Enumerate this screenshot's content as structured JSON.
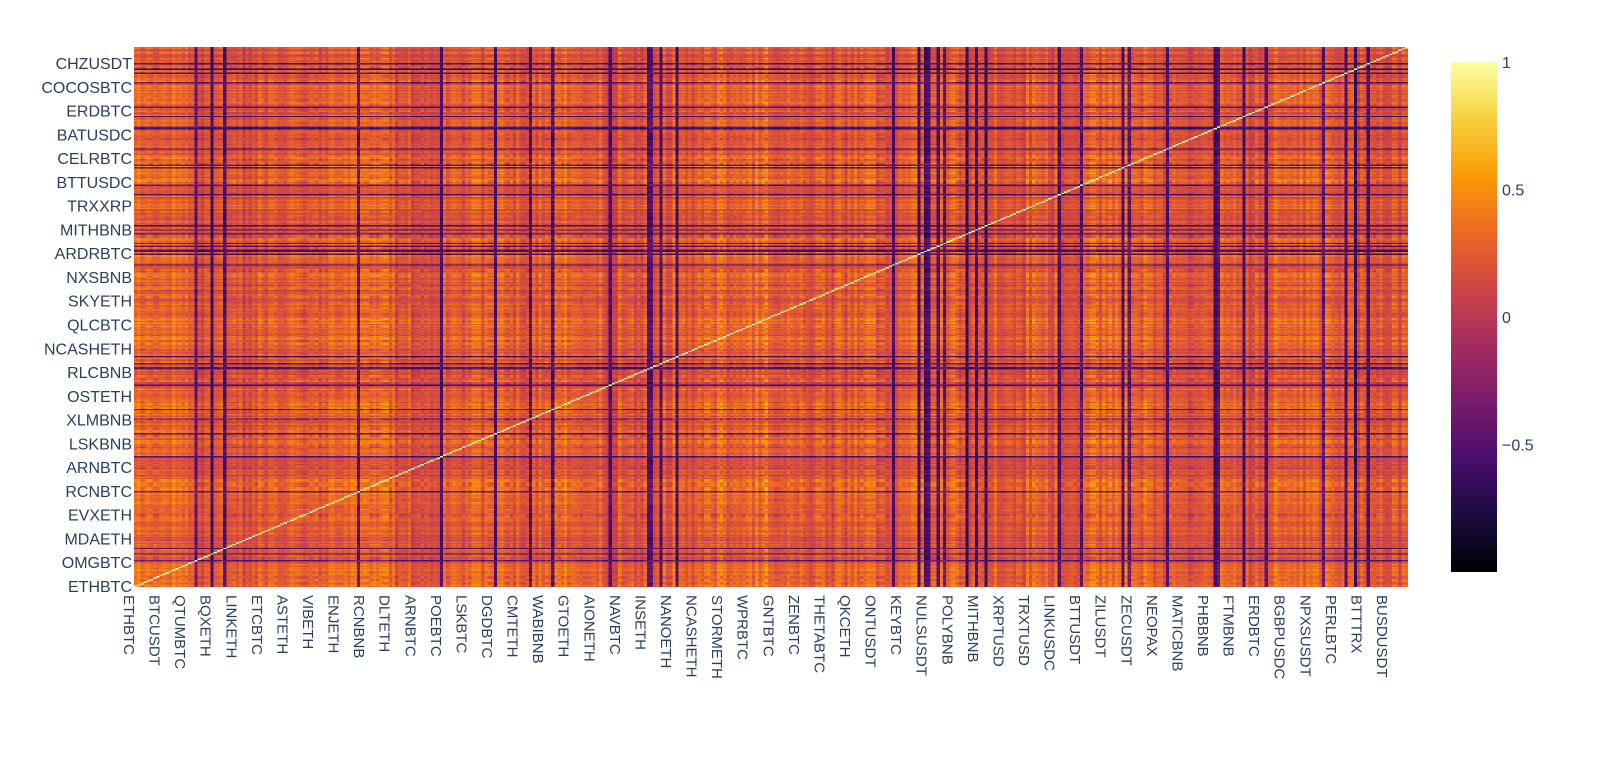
{
  "chart_data": {
    "type": "heatmap",
    "title": "",
    "xlabel": "",
    "ylabel": "",
    "y_tick_labels": [
      "CHZUSDT",
      "COCOSBTC",
      "ERDBTC",
      "BATUSDC",
      "CELRBTC",
      "BTTUSDC",
      "TRXXRP",
      "MITHBNB",
      "ARDRBTC",
      "NXSBNB",
      "SKYETH",
      "QLCBTC",
      "NCASHETH",
      "RLCBNB",
      "OSTETH",
      "XLMBNB",
      "LSKBNB",
      "ARNBTC",
      "RCNBTC",
      "EVXETH",
      "MDAETH",
      "OMGBTC",
      "ETHBTC"
    ],
    "x_tick_labels": [
      "ETHBTC",
      "BTCUSDT",
      "QTUMBTC",
      "BQXETH",
      "LINKETH",
      "ETCBTC",
      "ASTETH",
      "VIBETH",
      "ENJETH",
      "RCNBNB",
      "DLTETH",
      "ARNBTC",
      "POEBTC",
      "LSKBTC",
      "DGDBTC",
      "CMTETH",
      "WABIBNB",
      "GTOETH",
      "AIONETH",
      "NAVBTC",
      "INSETH",
      "NANOETH",
      "NCASHETH",
      "STORMETH",
      "WPRBTC",
      "GNTBTC",
      "ZENBTC",
      "THETABTC",
      "QKCETH",
      "ONTUSDT",
      "KEYBTC",
      "NULSUSDT",
      "POLYBNB",
      "MITHBNB",
      "XRPTUSD",
      "TRXTUSD",
      "LINKUSDC",
      "BTTUSDT",
      "ZILUSDT",
      "ZECUSDT",
      "NEOPAX",
      "MATICBNB",
      "PHBBNB",
      "FTMBNB",
      "ERDBTC",
      "BGBPUSDC",
      "NPXSUSDT",
      "PERLBTC",
      "BTTTRX",
      "BUSDUSDT"
    ],
    "colorscale": "Inferno",
    "colorscale_stops": [
      "#000004",
      "#1b0c41",
      "#4a0c6b",
      "#781c6d",
      "#a52c60",
      "#cf4446",
      "#ed6925",
      "#fb9b06",
      "#f7d13d",
      "#fcffa4"
    ],
    "zrange": [
      -1,
      1
    ],
    "colorbar_ticks": [
      "1",
      "0.5",
      "0",
      "−0.5"
    ],
    "colorbar_tick_values": [
      1,
      0.5,
      0,
      -0.5
    ],
    "diagonal_value": 1,
    "matrix_size": 400,
    "value_note": "pairwise correlation matrix, values mostly between -0.8 and 1"
  }
}
